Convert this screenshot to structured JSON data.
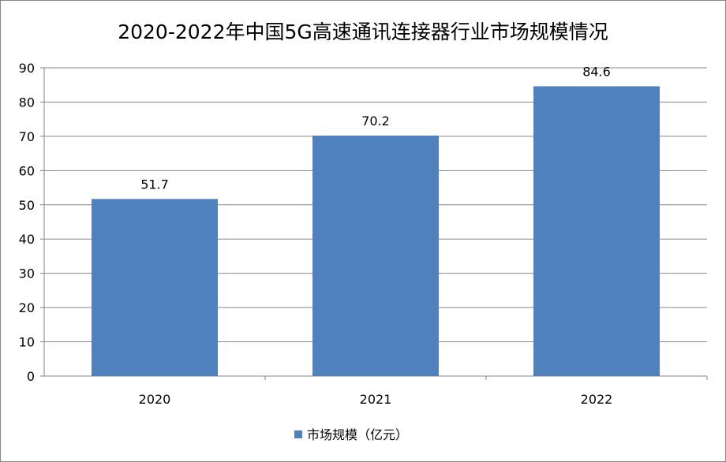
{
  "chart_data": {
    "type": "bar",
    "title": "2020-2022年中国5G高速通讯连接器行业市场规模情况",
    "categories": [
      "2020",
      "2021",
      "2022"
    ],
    "series": [
      {
        "name": "市场规模（亿元）",
        "values": [
          51.7,
          70.2,
          84.6
        ],
        "color": "#4F81BD"
      }
    ],
    "data_labels": [
      "51.7",
      "70.2",
      "84.6"
    ],
    "xlabel": "",
    "ylabel": "",
    "ylim": [
      0,
      90
    ],
    "yticks": [
      "0",
      "10",
      "20",
      "30",
      "40",
      "50",
      "60",
      "70",
      "80",
      "90"
    ],
    "grid": true,
    "legend": "bottom"
  }
}
